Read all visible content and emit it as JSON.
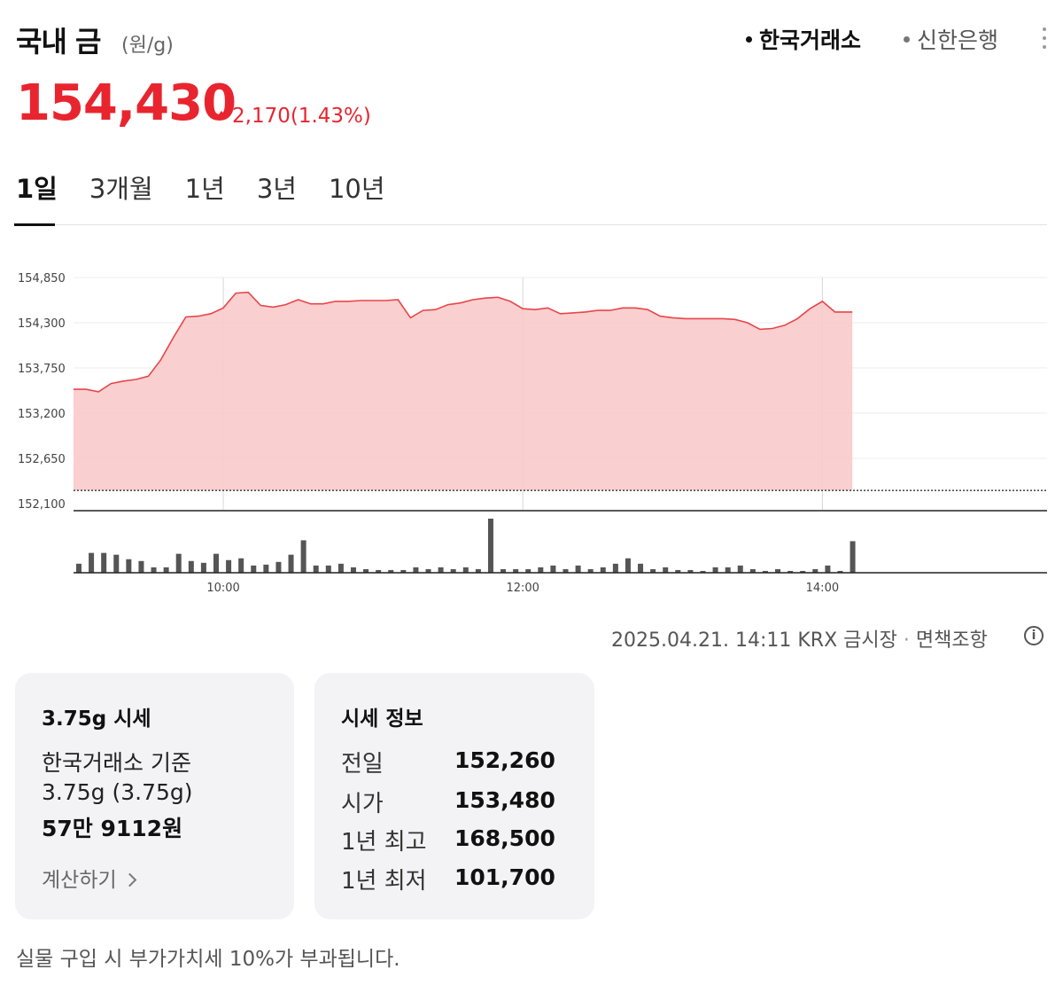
{
  "header": {
    "title": "국내 금",
    "unit": "(원/g)",
    "sources": [
      {
        "label": "한국거래소",
        "active": true
      },
      {
        "label": "신한은행",
        "active": false
      }
    ],
    "more_icon": "more-vertical-icon"
  },
  "price": {
    "current": "154,430",
    "change": "2,170",
    "change_pct": "(1.43%)",
    "direction": "up",
    "color": "#e8252f"
  },
  "tabs": [
    {
      "label": "1일",
      "active": true
    },
    {
      "label": "3개월",
      "active": false
    },
    {
      "label": "1년",
      "active": false
    },
    {
      "label": "3년",
      "active": false
    },
    {
      "label": "10년",
      "active": false
    }
  ],
  "chart_data": {
    "type": "area",
    "title": "",
    "xlabel": "",
    "ylabel": "",
    "ylim": [
      152100,
      154850
    ],
    "yticks": [
      "154,850",
      "154,300",
      "153,750",
      "153,200",
      "152,650",
      "152,100"
    ],
    "ytick_values": [
      154850,
      154300,
      153750,
      153200,
      152650,
      152100
    ],
    "xlim": [
      "09:00",
      "15:30"
    ],
    "xtick_labels": [
      "10:00",
      "12:00",
      "14:00"
    ],
    "reference_line": {
      "label": "전일",
      "value": 152260,
      "style": "dotted"
    },
    "grid": true,
    "colors": {
      "line": "#e8454a",
      "fill": "#f8caca",
      "volume": "#555555"
    },
    "series": [
      {
        "values_time": [
          "09:00",
          "09:05",
          "09:10",
          "09:15",
          "09:20",
          "09:25",
          "09:30",
          "09:35",
          "09:40",
          "09:45",
          "09:50",
          "09:55",
          "10:00",
          "10:05",
          "10:10",
          "10:15",
          "10:20",
          "10:25",
          "10:30",
          "10:35",
          "10:40",
          "10:45",
          "10:50",
          "10:55",
          "11:00",
          "11:05",
          "11:10",
          "11:15",
          "11:20",
          "11:25",
          "11:30",
          "11:35",
          "11:40",
          "11:45",
          "11:50",
          "11:55",
          "12:00",
          "12:05",
          "12:10",
          "12:15",
          "12:20",
          "12:25",
          "12:30",
          "12:35",
          "12:40",
          "12:45",
          "12:50",
          "12:55",
          "13:00",
          "13:05",
          "13:10",
          "13:15",
          "13:20",
          "13:25",
          "13:30",
          "13:35",
          "13:40",
          "13:45",
          "13:50",
          "13:55",
          "14:00",
          "14:05",
          "14:10",
          "14:12"
        ],
        "values": [
          153490,
          153490,
          153460,
          153560,
          153590,
          153610,
          153650,
          153850,
          154120,
          154370,
          154380,
          154410,
          154480,
          154660,
          154670,
          154510,
          154490,
          154520,
          154580,
          154530,
          154530,
          154560,
          154560,
          154570,
          154570,
          154570,
          154580,
          154360,
          154450,
          154460,
          154520,
          154540,
          154580,
          154600,
          154610,
          154560,
          154470,
          154460,
          154480,
          154410,
          154420,
          154430,
          154450,
          154450,
          154480,
          154480,
          154460,
          154380,
          154360,
          154350,
          154350,
          154350,
          154350,
          154340,
          154300,
          154220,
          154230,
          154270,
          154350,
          154470,
          154560,
          154430,
          154430,
          154430
        ]
      }
    ],
    "volume": {
      "time": [
        "09:00",
        "09:05",
        "09:10",
        "09:15",
        "09:20",
        "09:25",
        "09:30",
        "09:35",
        "09:40",
        "09:45",
        "09:50",
        "09:55",
        "10:00",
        "10:05",
        "10:10",
        "10:15",
        "10:20",
        "10:25",
        "10:30",
        "10:35",
        "10:40",
        "10:45",
        "10:50",
        "10:55",
        "11:00",
        "11:05",
        "11:10",
        "11:15",
        "11:20",
        "11:25",
        "11:30",
        "11:35",
        "11:40",
        "11:45",
        "11:50",
        "11:55",
        "12:00",
        "12:05",
        "12:10",
        "12:15",
        "12:20",
        "12:25",
        "12:30",
        "12:35",
        "12:40",
        "12:45",
        "12:50",
        "12:55",
        "13:00",
        "13:05",
        "13:10",
        "13:15",
        "13:20",
        "13:25",
        "13:30",
        "13:35",
        "13:40",
        "13:45",
        "13:50",
        "13:55",
        "14:00",
        "14:05",
        "14:10"
      ],
      "values": [
        10,
        22,
        22,
        20,
        15,
        13,
        6,
        6,
        21,
        13,
        11,
        21,
        14,
        16,
        8,
        9,
        12,
        20,
        36,
        8,
        8,
        10,
        6,
        4,
        3,
        3,
        3,
        6,
        4,
        6,
        4,
        6,
        4,
        60,
        4,
        4,
        4,
        6,
        8,
        4,
        8,
        4,
        6,
        10,
        16,
        10,
        4,
        6,
        3,
        3,
        2,
        6,
        6,
        8,
        4,
        2,
        4,
        2,
        2,
        4,
        8,
        2,
        35
      ]
    }
  },
  "meta": {
    "timestamp": "2025.04.21. 14:11",
    "market": "KRX 금시장",
    "disclaimer": "면책조항",
    "info_icon": "info-circle-icon"
  },
  "card_gram": {
    "title": "3.75g 시세",
    "basis": "한국거래소 기준",
    "weight": "3.75g (3.75g)",
    "value": "57만 9112원",
    "calc_label": "계산하기",
    "calc_icon": "chevron-right-icon"
  },
  "card_info": {
    "title": "시세 정보",
    "rows": [
      {
        "label": "전일",
        "value": "152,260"
      },
      {
        "label": "시가",
        "value": "153,480"
      },
      {
        "label": "1년 최고",
        "value": "168,500"
      },
      {
        "label": "1년 최저",
        "value": "101,700"
      }
    ]
  },
  "footer": {
    "note": "실물 구입 시 부가가치세 10%가 부과됩니다."
  }
}
